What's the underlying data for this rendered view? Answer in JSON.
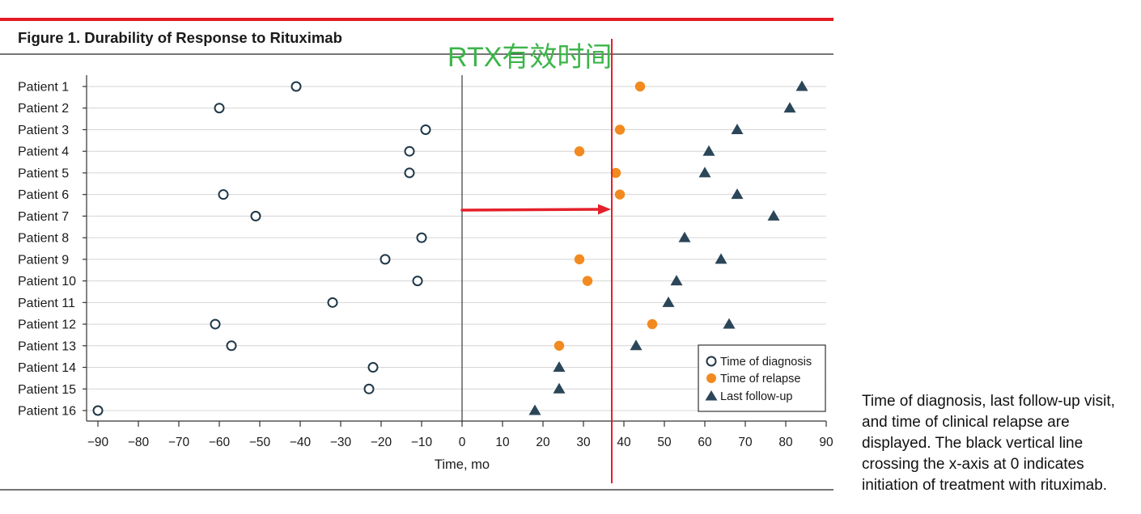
{
  "chart_data": {
    "type": "scatter",
    "title": "Figure 1. Durability of Response to Rituximab",
    "xlabel": "Time, mo",
    "xlim": [
      -90,
      90
    ],
    "xticks": [
      -90,
      -80,
      -70,
      -60,
      -50,
      -40,
      -30,
      -20,
      -10,
      0,
      10,
      20,
      30,
      40,
      50,
      60,
      70,
      80,
      90
    ],
    "xtick_labels": [
      "−90",
      "−80",
      "−70",
      "−60",
      "−50",
      "−40",
      "−30",
      "−20",
      "−10",
      "0",
      "10",
      "20",
      "30",
      "40",
      "50",
      "60",
      "70",
      "80",
      "90"
    ],
    "categories": [
      "Patient 1",
      "Patient 2",
      "Patient 3",
      "Patient 4",
      "Patient 5",
      "Patient 6",
      "Patient 7",
      "Patient 8",
      "Patient 9",
      "Patient 10",
      "Patient 11",
      "Patient 12",
      "Patient 13",
      "Patient 14",
      "Patient 15",
      "Patient 16"
    ],
    "series": [
      {
        "name": "Time of diagnosis",
        "marker": "open-circle",
        "values": [
          -41,
          -60,
          -9,
          -13,
          -13,
          -59,
          -51,
          -10,
          -19,
          -11,
          -32,
          -61,
          -57,
          -22,
          -23,
          -90
        ]
      },
      {
        "name": "Time of relapse",
        "marker": "filled-circle",
        "values": [
          44,
          null,
          39,
          29,
          38,
          39,
          null,
          null,
          29,
          31,
          null,
          47,
          24,
          null,
          null,
          null
        ]
      },
      {
        "name": "Last follow-up",
        "marker": "triangle",
        "values": [
          84,
          81,
          68,
          61,
          60,
          68,
          77,
          55,
          64,
          53,
          51,
          66,
          43,
          24,
          24,
          18
        ]
      }
    ],
    "reference_line": {
      "x": 0
    },
    "grid": {
      "horizontal": true,
      "vertical": false
    },
    "legend": "bottom-right",
    "annotation": {
      "text": "RTX有效时间",
      "line_x": 37,
      "arrow_from_x": 0,
      "arrow_to_x": 37
    }
  },
  "caption": {
    "lines": [
      "Time of diagnosis, last follow-up visit,",
      "and time of clinical relapse are",
      "displayed. The black vertical line",
      "crossing the x-axis at 0 indicates",
      "initiation of treatment with rituximab."
    ]
  },
  "colors": {
    "accent": "#e31b23",
    "diagnosis": "#1e3747",
    "relapse": "#f28a1f",
    "followup": "#2b4658",
    "gridline": "#d4d4d4",
    "annotation_red": "#e4202a",
    "annotation_green": "#3db54a"
  }
}
